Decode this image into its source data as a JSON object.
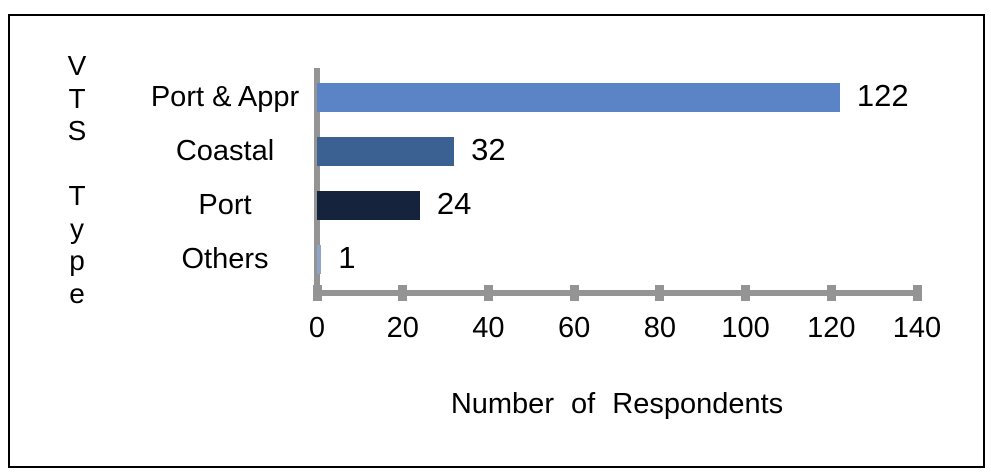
{
  "chart_data": {
    "type": "bar",
    "orientation": "horizontal",
    "title": "",
    "xlabel": "Number of Respondents",
    "ylabel": "VTS Type",
    "ylabel_vertical_chars": [
      "V",
      "T",
      "S",
      "",
      "T",
      "y",
      "p",
      "e"
    ],
    "categories": [
      "Port & Appr",
      "Coastal",
      "Port",
      "Others"
    ],
    "values": [
      122,
      32,
      24,
      1
    ],
    "value_labels": [
      "122",
      "32",
      "24",
      "1"
    ],
    "xlim": [
      0,
      140
    ],
    "xticks": [
      0,
      20,
      40,
      60,
      80,
      100,
      120,
      140
    ],
    "xtick_labels": [
      "0",
      "20",
      "40",
      "60",
      "80",
      "100",
      "120",
      "140"
    ],
    "bar_colors": [
      "#5B84C7",
      "#3A6191",
      "#16233D",
      "#8FA5C7"
    ],
    "axis_color": "#949494",
    "text_color": "#000000",
    "frame_border_color": "#000000",
    "background_color": "#FFFFFF",
    "grid": false,
    "legend": "none"
  }
}
